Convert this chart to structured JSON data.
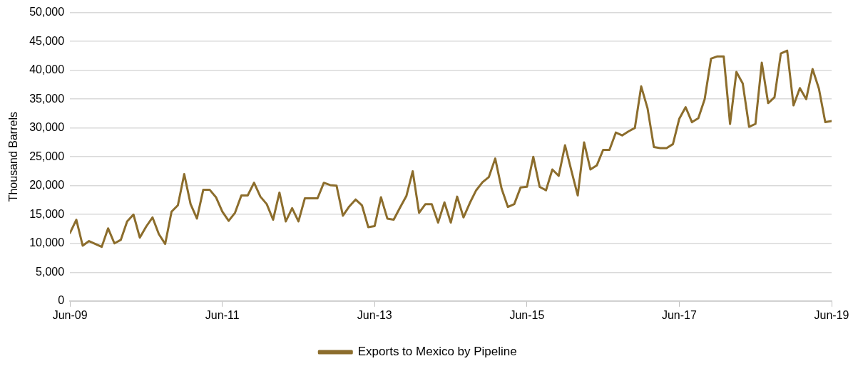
{
  "chart_data": {
    "type": "line",
    "ylabel": "Thousand Barrels",
    "legend": "bottom",
    "grid": "y",
    "marker": "none",
    "line_style": "solid",
    "xlim": [
      "2009-06",
      "2019-06"
    ],
    "xticks": [
      {
        "value": "2009-06",
        "label": "Jun-09"
      },
      {
        "value": "2011-06",
        "label": "Jun-11"
      },
      {
        "value": "2013-06",
        "label": "Jun-13"
      },
      {
        "value": "2015-06",
        "label": "Jun-15"
      },
      {
        "value": "2017-06",
        "label": "Jun-17"
      },
      {
        "value": "2019-06",
        "label": "Jun-19"
      }
    ],
    "ylim": [
      0,
      50000
    ],
    "yticks": [
      {
        "value": 0,
        "label": "0"
      },
      {
        "value": 5000,
        "label": "5,000"
      },
      {
        "value": 10000,
        "label": "10,000"
      },
      {
        "value": 15000,
        "label": "15,000"
      },
      {
        "value": 20000,
        "label": "20,000"
      },
      {
        "value": 25000,
        "label": "25,000"
      },
      {
        "value": 30000,
        "label": "30,000"
      },
      {
        "value": 35000,
        "label": "35,000"
      },
      {
        "value": 40000,
        "label": "40,000"
      },
      {
        "value": 45000,
        "label": "45,000"
      },
      {
        "value": 50000,
        "label": "50,000"
      }
    ],
    "x": [
      "2009-06",
      "2009-07",
      "2009-08",
      "2009-09",
      "2009-10",
      "2009-11",
      "2009-12",
      "2010-01",
      "2010-02",
      "2010-03",
      "2010-04",
      "2010-05",
      "2010-06",
      "2010-07",
      "2010-08",
      "2010-09",
      "2010-10",
      "2010-11",
      "2010-12",
      "2011-01",
      "2011-02",
      "2011-03",
      "2011-04",
      "2011-05",
      "2011-06",
      "2011-07",
      "2011-08",
      "2011-09",
      "2011-10",
      "2011-11",
      "2011-12",
      "2012-01",
      "2012-02",
      "2012-03",
      "2012-04",
      "2012-05",
      "2012-06",
      "2012-07",
      "2012-08",
      "2012-09",
      "2012-10",
      "2012-11",
      "2012-12",
      "2013-01",
      "2013-02",
      "2013-03",
      "2013-04",
      "2013-05",
      "2013-06",
      "2013-07",
      "2013-08",
      "2013-09",
      "2013-10",
      "2013-11",
      "2013-12",
      "2014-01",
      "2014-02",
      "2014-03",
      "2014-04",
      "2014-05",
      "2014-06",
      "2014-07",
      "2014-08",
      "2014-09",
      "2014-10",
      "2014-11",
      "2014-12",
      "2015-01",
      "2015-02",
      "2015-03",
      "2015-04",
      "2015-05",
      "2015-06",
      "2015-07",
      "2015-08",
      "2015-09",
      "2015-10",
      "2015-11",
      "2015-12",
      "2016-01",
      "2016-02",
      "2016-03",
      "2016-04",
      "2016-05",
      "2016-06",
      "2016-07",
      "2016-08",
      "2016-09",
      "2016-10",
      "2016-11",
      "2016-12",
      "2017-01",
      "2017-02",
      "2017-03",
      "2017-04",
      "2017-05",
      "2017-06",
      "2017-07",
      "2017-08",
      "2017-09",
      "2017-10",
      "2017-11",
      "2017-12",
      "2018-01",
      "2018-02",
      "2018-03",
      "2018-04",
      "2018-05",
      "2018-06",
      "2018-07",
      "2018-08",
      "2018-09",
      "2018-10",
      "2018-11",
      "2018-12",
      "2019-01",
      "2019-02",
      "2019-03",
      "2019-04",
      "2019-05",
      "2019-06"
    ],
    "series": [
      {
        "name": "Exports to Mexico by Pipeline",
        "color": "#8c6d2c",
        "values": [
          11800,
          14100,
          9600,
          10400,
          9900,
          9400,
          12600,
          10000,
          10600,
          13800,
          15000,
          11000,
          12900,
          14500,
          11600,
          9900,
          15500,
          16600,
          22000,
          16800,
          14300,
          19300,
          19300,
          18000,
          15500,
          13900,
          15300,
          18300,
          18300,
          20500,
          18100,
          16800,
          14100,
          18800,
          13800,
          16100,
          13800,
          17800,
          17800,
          17800,
          20500,
          20100,
          20000,
          14800,
          16400,
          17600,
          16600,
          12800,
          13000,
          18000,
          14300,
          14100,
          16200,
          18200,
          22500,
          15300,
          16800,
          16800,
          13600,
          17100,
          13600,
          18100,
          14500,
          17000,
          19200,
          20600,
          21500,
          24700,
          19500,
          16300,
          16800,
          19700,
          19800,
          25000,
          19800,
          19200,
          22800,
          21700,
          27000,
          22600,
          18300,
          27500,
          22800,
          23500,
          26200,
          26200,
          29200,
          28700,
          29400,
          30000,
          37200,
          33400,
          26700,
          26500,
          26500,
          27200,
          31600,
          33600,
          31000,
          31700,
          35000,
          42000,
          42400,
          42400,
          30700,
          39700,
          37700,
          30200,
          30700,
          41300,
          34300,
          35300,
          42900,
          43400,
          33900,
          36900,
          35000,
          40200,
          36800,
          31000,
          31200
        ]
      }
    ]
  }
}
